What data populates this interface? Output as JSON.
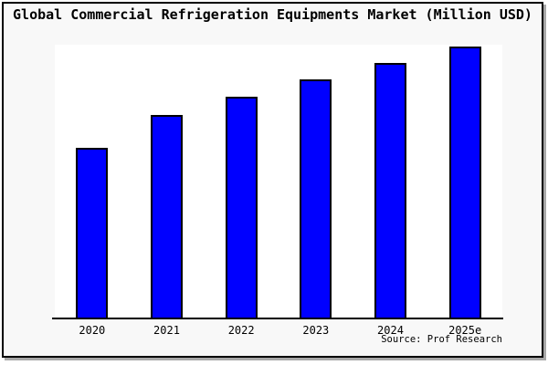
{
  "page": {
    "background": "#ffffff",
    "frame_background": "#f8f8f8",
    "frame_border_color": "#000000",
    "frame_shadow_color": "#a8a8a8",
    "plot_background": "#ffffff",
    "axis_color": "#000000",
    "text_color": "#000000"
  },
  "chart_data": {
    "type": "bar",
    "title": "Global Commercial Refrigeration Equipments Market (Million USD)",
    "categories": [
      "2020",
      "2021",
      "2022",
      "2023",
      "2024",
      "2025e"
    ],
    "values": [
      62.3,
      74.3,
      81.0,
      87.3,
      93.3,
      99.3
    ],
    "values_note": "No y-axis, gridlines or data labels are shown in the image; values are bar heights estimated as percent of the 300px plot height",
    "xlabel": "",
    "ylabel": "",
    "ylim": [
      0,
      100
    ],
    "grid": false,
    "legend": false,
    "bar_color": "#0000ff",
    "bar_border_color": "#000000",
    "source": "Source: Prof Research"
  }
}
